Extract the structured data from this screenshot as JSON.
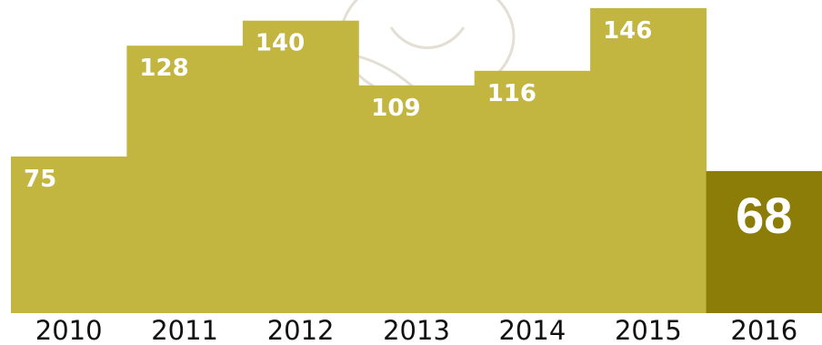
{
  "chart_data": {
    "type": "bar",
    "categories": [
      "2010",
      "2011",
      "2012",
      "2013",
      "2014",
      "2015",
      "2016"
    ],
    "values": [
      75,
      128,
      140,
      109,
      116,
      146,
      68
    ],
    "value_labels": [
      "75",
      "128",
      "140",
      "109",
      "116",
      "146",
      "68"
    ],
    "title": "",
    "xlabel": "",
    "ylabel": "",
    "ylim": [
      0,
      150
    ],
    "grid": false,
    "legend": "none",
    "highlight_index": 6,
    "colors": {
      "bar": "#c2b540",
      "highlight_bar": "#8b7d08",
      "label": "#ffffff",
      "axis_text": "#111111",
      "watermark": "#e3dfd4"
    },
    "watermark_icon": "eagle-emblem-icon"
  }
}
